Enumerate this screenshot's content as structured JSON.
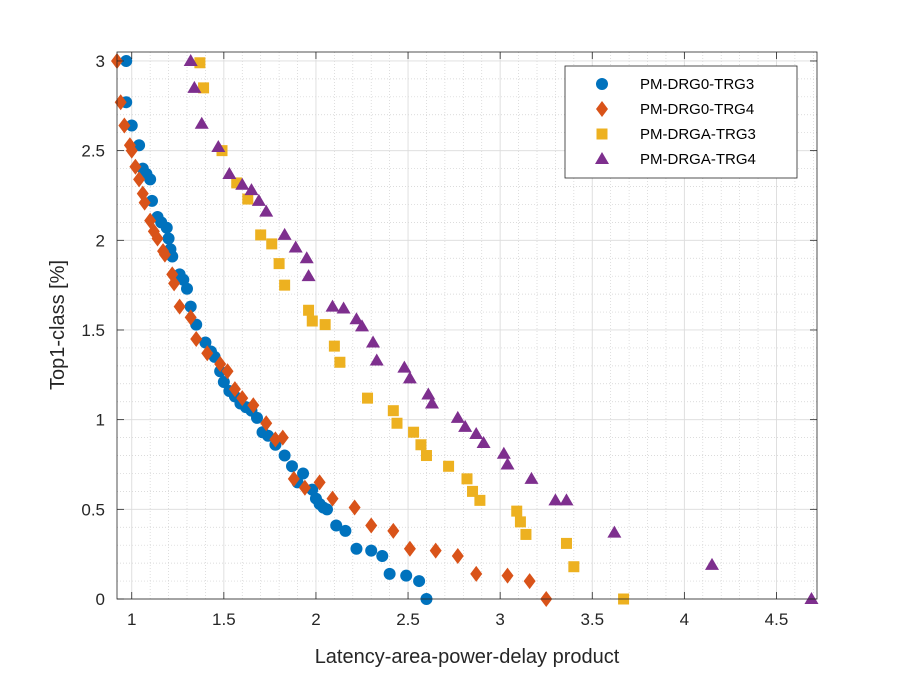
{
  "chart_data": {
    "type": "scatter",
    "title": "",
    "xlabel": "Latency-area-power-delay product",
    "ylabel": "Top1-class [%]",
    "xlim": [
      0.92,
      4.72
    ],
    "ylim": [
      0,
      3.05
    ],
    "xticks": [
      1,
      1.5,
      2,
      2.5,
      3,
      3.5,
      4,
      4.5
    ],
    "xtick_labels": [
      "1",
      "1.5",
      "2",
      "2.5",
      "3",
      "3.5",
      "4",
      "4.5"
    ],
    "yticks": [
      0,
      0.5,
      1,
      1.5,
      2,
      2.5,
      3
    ],
    "ytick_labels": [
      "0",
      "0.5",
      "1",
      "1.5",
      "2",
      "2.5",
      "3"
    ],
    "grid": true,
    "minor_grid": true,
    "legend_position": "top-right",
    "series": [
      {
        "name": "PM-DRG0-TRG3",
        "marker": "circle",
        "color": "#0072BD",
        "points": [
          [
            0.97,
            3.0
          ],
          [
            0.97,
            2.77
          ],
          [
            1.0,
            2.64
          ],
          [
            1.04,
            2.53
          ],
          [
            1.06,
            2.4
          ],
          [
            1.08,
            2.37
          ],
          [
            1.1,
            2.34
          ],
          [
            1.11,
            2.22
          ],
          [
            1.14,
            2.13
          ],
          [
            1.16,
            2.1
          ],
          [
            1.19,
            2.07
          ],
          [
            1.2,
            2.01
          ],
          [
            1.21,
            1.95
          ],
          [
            1.22,
            1.91
          ],
          [
            1.26,
            1.81
          ],
          [
            1.28,
            1.78
          ],
          [
            1.3,
            1.73
          ],
          [
            1.32,
            1.63
          ],
          [
            1.35,
            1.53
          ],
          [
            1.4,
            1.43
          ],
          [
            1.43,
            1.38
          ],
          [
            1.45,
            1.35
          ],
          [
            1.48,
            1.27
          ],
          [
            1.5,
            1.21
          ],
          [
            1.53,
            1.16
          ],
          [
            1.56,
            1.13
          ],
          [
            1.59,
            1.09
          ],
          [
            1.62,
            1.07
          ],
          [
            1.65,
            1.05
          ],
          [
            1.68,
            1.01
          ],
          [
            1.71,
            0.93
          ],
          [
            1.74,
            0.91
          ],
          [
            1.78,
            0.86
          ],
          [
            1.83,
            0.8
          ],
          [
            1.87,
            0.74
          ],
          [
            1.9,
            0.65
          ],
          [
            1.93,
            0.7
          ],
          [
            1.98,
            0.61
          ],
          [
            2.0,
            0.56
          ],
          [
            2.02,
            0.53
          ],
          [
            2.04,
            0.51
          ],
          [
            2.06,
            0.5
          ],
          [
            2.11,
            0.41
          ],
          [
            2.16,
            0.38
          ],
          [
            2.22,
            0.28
          ],
          [
            2.3,
            0.27
          ],
          [
            2.36,
            0.24
          ],
          [
            2.4,
            0.14
          ],
          [
            2.49,
            0.13
          ],
          [
            2.56,
            0.1
          ],
          [
            2.6,
            0.0
          ]
        ]
      },
      {
        "name": "PM-DRG0-TRG4",
        "marker": "diamond",
        "color": "#D95319",
        "points": [
          [
            0.92,
            3.0
          ],
          [
            0.94,
            2.77
          ],
          [
            0.96,
            2.64
          ],
          [
            0.99,
            2.53
          ],
          [
            1.0,
            2.5
          ],
          [
            1.02,
            2.41
          ],
          [
            1.04,
            2.34
          ],
          [
            1.06,
            2.26
          ],
          [
            1.07,
            2.21
          ],
          [
            1.1,
            2.11
          ],
          [
            1.12,
            2.05
          ],
          [
            1.14,
            2.01
          ],
          [
            1.17,
            1.94
          ],
          [
            1.18,
            1.92
          ],
          [
            1.22,
            1.81
          ],
          [
            1.23,
            1.76
          ],
          [
            1.26,
            1.63
          ],
          [
            1.32,
            1.57
          ],
          [
            1.35,
            1.45
          ],
          [
            1.41,
            1.37
          ],
          [
            1.48,
            1.31
          ],
          [
            1.52,
            1.27
          ],
          [
            1.56,
            1.17
          ],
          [
            1.6,
            1.12
          ],
          [
            1.66,
            1.08
          ],
          [
            1.73,
            0.98
          ],
          [
            1.78,
            0.89
          ],
          [
            1.82,
            0.9
          ],
          [
            1.88,
            0.67
          ],
          [
            1.94,
            0.62
          ],
          [
            2.02,
            0.65
          ],
          [
            2.09,
            0.56
          ],
          [
            2.21,
            0.51
          ],
          [
            2.3,
            0.41
          ],
          [
            2.42,
            0.38
          ],
          [
            2.51,
            0.28
          ],
          [
            2.65,
            0.27
          ],
          [
            2.77,
            0.24
          ],
          [
            2.87,
            0.14
          ],
          [
            3.04,
            0.13
          ],
          [
            3.16,
            0.1
          ],
          [
            3.25,
            0.0
          ]
        ]
      },
      {
        "name": "PM-DRGA-TRG3",
        "marker": "square",
        "color": "#EDB120",
        "points": [
          [
            1.37,
            2.99
          ],
          [
            1.39,
            2.85
          ],
          [
            1.49,
            2.5
          ],
          [
            1.57,
            2.32
          ],
          [
            1.63,
            2.23
          ],
          [
            1.7,
            2.03
          ],
          [
            1.76,
            1.98
          ],
          [
            1.8,
            1.87
          ],
          [
            1.83,
            1.75
          ],
          [
            1.96,
            1.61
          ],
          [
            1.98,
            1.55
          ],
          [
            2.05,
            1.53
          ],
          [
            2.1,
            1.41
          ],
          [
            2.13,
            1.32
          ],
          [
            2.28,
            1.12
          ],
          [
            2.42,
            1.05
          ],
          [
            2.44,
            0.98
          ],
          [
            2.53,
            0.93
          ],
          [
            2.57,
            0.86
          ],
          [
            2.6,
            0.8
          ],
          [
            2.72,
            0.74
          ],
          [
            2.82,
            0.67
          ],
          [
            2.85,
            0.6
          ],
          [
            2.89,
            0.55
          ],
          [
            3.09,
            0.49
          ],
          [
            3.11,
            0.43
          ],
          [
            3.14,
            0.36
          ],
          [
            3.36,
            0.31
          ],
          [
            3.4,
            0.18
          ],
          [
            3.67,
            0.0
          ]
        ]
      },
      {
        "name": "PM-DRGA-TRG4",
        "marker": "triangle",
        "color": "#7E2F8E",
        "points": [
          [
            1.32,
            3.0
          ],
          [
            1.34,
            2.85
          ],
          [
            1.38,
            2.65
          ],
          [
            1.47,
            2.52
          ],
          [
            1.53,
            2.37
          ],
          [
            1.6,
            2.31
          ],
          [
            1.65,
            2.28
          ],
          [
            1.69,
            2.22
          ],
          [
            1.73,
            2.16
          ],
          [
            1.83,
            2.03
          ],
          [
            1.89,
            1.96
          ],
          [
            1.95,
            1.9
          ],
          [
            1.96,
            1.8
          ],
          [
            2.09,
            1.63
          ],
          [
            2.15,
            1.62
          ],
          [
            2.22,
            1.56
          ],
          [
            2.25,
            1.52
          ],
          [
            2.31,
            1.43
          ],
          [
            2.33,
            1.33
          ],
          [
            2.48,
            1.29
          ],
          [
            2.51,
            1.23
          ],
          [
            2.61,
            1.14
          ],
          [
            2.63,
            1.09
          ],
          [
            2.77,
            1.01
          ],
          [
            2.81,
            0.96
          ],
          [
            2.87,
            0.92
          ],
          [
            2.91,
            0.87
          ],
          [
            3.02,
            0.81
          ],
          [
            3.04,
            0.75
          ],
          [
            3.17,
            0.67
          ],
          [
            3.3,
            0.55
          ],
          [
            3.36,
            0.55
          ],
          [
            3.62,
            0.37
          ],
          [
            4.15,
            0.19
          ],
          [
            4.69,
            0.0
          ]
        ]
      }
    ]
  }
}
